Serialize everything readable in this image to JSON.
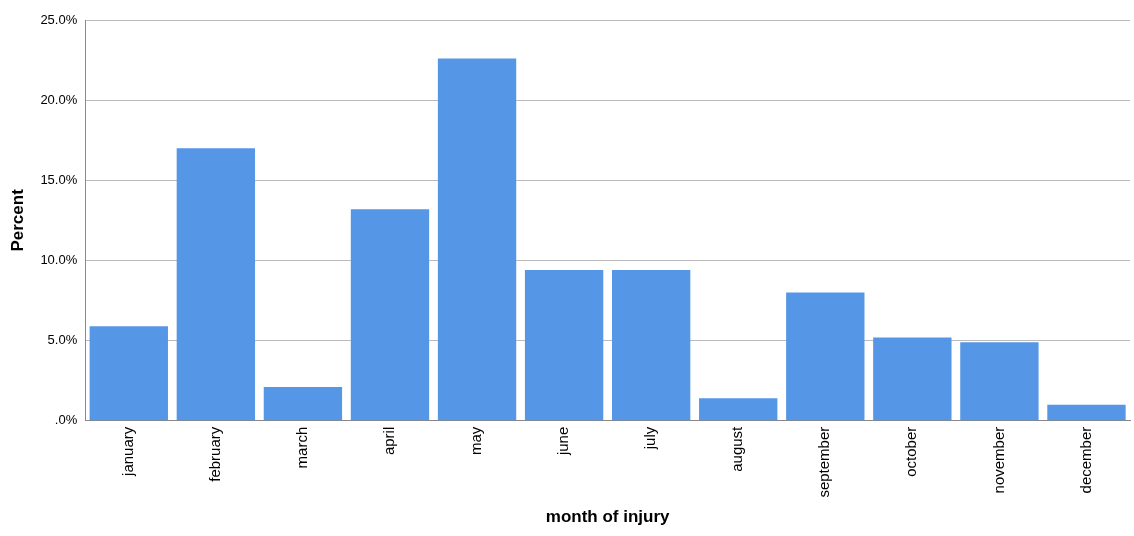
{
  "chart_data": {
    "type": "bar",
    "xlabel": "month of injury",
    "ylabel": "Percent",
    "categories": [
      "january",
      "february",
      "march",
      "april",
      "may",
      "june",
      "july",
      "august",
      "september",
      "october",
      "november",
      "december"
    ],
    "values": [
      5.9,
      17.0,
      2.1,
      13.2,
      22.6,
      9.4,
      9.4,
      1.4,
      8.0,
      5.2,
      4.9,
      1.0
    ],
    "color": "#5596e6",
    "ylim": [
      0,
      25
    ],
    "yticks": [
      {
        "value": 0,
        "label": ".0%"
      },
      {
        "value": 5,
        "label": "5.0%"
      },
      {
        "value": 10,
        "label": "10.0%"
      },
      {
        "value": 15,
        "label": "15.0%"
      },
      {
        "value": 20,
        "label": "20.0%"
      },
      {
        "value": 25,
        "label": "25.0%"
      }
    ],
    "grid": "y",
    "legend": false
  }
}
